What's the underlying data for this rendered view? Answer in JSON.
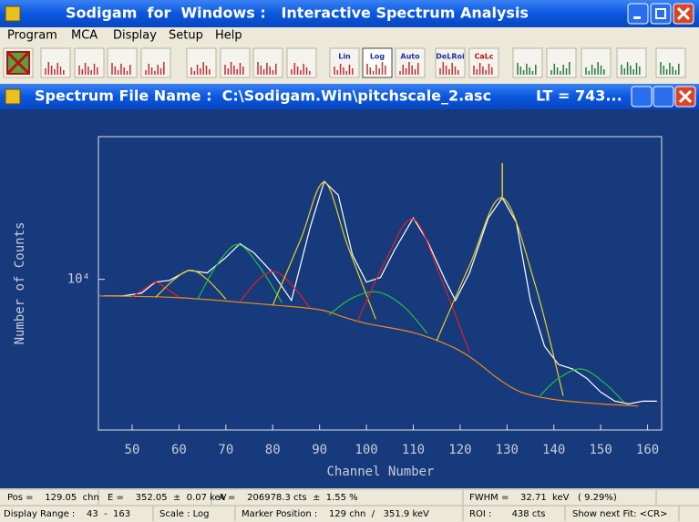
{
  "window": {
    "title": "Sodigam  for  Windows :   Interactive Spectrum Analysis",
    "menu": [
      "Program",
      "MCA",
      "Display",
      "Setup",
      "Help"
    ],
    "toolbar": [
      "Lin",
      "Log",
      "Auto",
      "DeLRoi",
      "CaLc"
    ]
  },
  "document": {
    "title": "Spectrum File Name :  C:\\Sodigam.Win\\pitchscale_2.asc",
    "live_time": "LT = 743..."
  },
  "chart_data": {
    "type": "line",
    "x_label": "Channel Number",
    "y_label": "Number of Counts",
    "xlim": [
      43,
      163
    ],
    "xticks": [
      50,
      60,
      70,
      80,
      90,
      100,
      110,
      120,
      130,
      140,
      150,
      160
    ],
    "ylim": [
      2200,
      42000
    ],
    "yticks": [
      {
        "value": 10000,
        "label": "10⁴"
      }
    ],
    "log_y": true,
    "series": [
      {
        "color": "#ffffff",
        "x": [
          44,
          48,
          52,
          55,
          58,
          62,
          66,
          70,
          73,
          76,
          80,
          84,
          88,
          91,
          94,
          97,
          100,
          103,
          106,
          110,
          113,
          117,
          119,
          122,
          126,
          129,
          132,
          135,
          138,
          141,
          144,
          147,
          150,
          153,
          156,
          159,
          162
        ],
        "values": [
          8470,
          8470,
          8710,
          9730,
          9910,
          10960,
          10670,
          12470,
          14320,
          13060,
          10670,
          8090,
          16900,
          26790,
          23330,
          12820,
          9730,
          10190,
          13430,
          18540,
          14720,
          9730,
          8090,
          10670,
          18540,
          22700,
          17700,
          8090,
          5110,
          4250,
          4060,
          3700,
          3220,
          2940,
          2860,
          2940,
          2940
        ]
      },
      {
        "color": "#f08a1c",
        "x": [
          43,
          60,
          80,
          90,
          95,
          100,
          110,
          118,
          123,
          128,
          133,
          140,
          150,
          158
        ],
        "values": [
          8470,
          8320,
          7730,
          7380,
          6860,
          6420,
          5860,
          5110,
          4450,
          3700,
          3220,
          2990,
          2860,
          2800
        ]
      },
      {
        "color": "#e02020",
        "x": [
          50,
          53,
          55,
          57,
          60
        ],
        "values": [
          8400,
          9200,
          9730,
          9200,
          8350
        ]
      },
      {
        "color": "#e8d020",
        "x": [
          55,
          59,
          62.5,
          66,
          70
        ],
        "values": [
          8350,
          10000,
          10960,
          10000,
          8200
        ]
      },
      {
        "color": "#20c040",
        "x": [
          64,
          68,
          72.5,
          77,
          82
        ],
        "values": [
          8200,
          11500,
          14200,
          11500,
          7900
        ]
      },
      {
        "color": "#e02020",
        "x": [
          73,
          77,
          80.5,
          84,
          88
        ],
        "values": [
          8000,
          10000,
          10800,
          9500,
          7500
        ]
      },
      {
        "color": "#e8d020",
        "x": [
          80,
          86,
          91,
          96,
          102
        ],
        "values": [
          7700,
          15000,
          26500,
          14000,
          6700
        ]
      },
      {
        "color": "#20c040",
        "x": [
          92,
          97,
          102.5,
          108,
          113
        ],
        "values": [
          7000,
          8300,
          8800,
          7600,
          5800
        ]
      },
      {
        "color": "#e02020",
        "x": [
          98,
          104,
          110,
          116,
          122
        ],
        "values": [
          6500,
          12000,
          18300,
          10000,
          4800
        ]
      },
      {
        "color": "#e8d020",
        "x": [
          115,
          122,
          129,
          136,
          142
        ],
        "values": [
          5400,
          11500,
          22700,
          9500,
          3100
        ]
      },
      {
        "color": "#20c040",
        "x": [
          137,
          141,
          146,
          151,
          155
        ],
        "values": [
          3100,
          3700,
          4060,
          3500,
          2900
        ]
      }
    ],
    "marker": {
      "x": 129,
      "y": 32200,
      "color": "#e8d020"
    }
  },
  "status_bar": {
    "rows": [
      [
        "Pos =    129.05  chn",
        "E =    352.05  ±  0.07 keV",
        "A =    206978.3 cts  ±  1.55 %",
        "FWHM =    32.71  keV   ( 9.29%)"
      ],
      [
        "Display Range :    43  -  163",
        "Scale : Log",
        "Marker Position :    129 chn  /   351.9 keV",
        "ROI :       438 cts",
        "Show next Fit: <CR>"
      ]
    ]
  }
}
